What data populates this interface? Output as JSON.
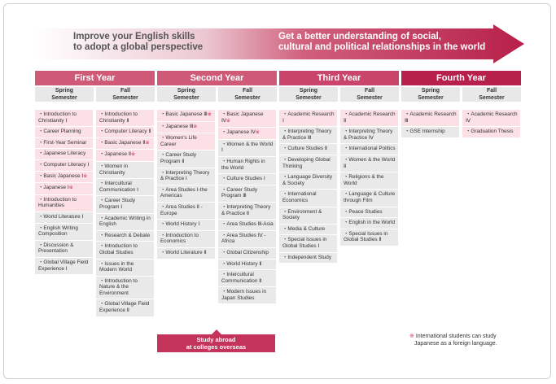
{
  "banner": {
    "left_text_1": "Improve your English skills",
    "left_text_2": "to adopt a global perspective",
    "right_text_1": "Get a better understanding of social,",
    "right_text_2": "cultural and political relationships in the world"
  },
  "colors": {
    "dark": "#b7204a",
    "mid": "#c9546f",
    "light": "#e3bcc7",
    "pink": "#fbe0e6",
    "gray": "#e9e9e9"
  },
  "mark": "※",
  "years": [
    {
      "title": "First Year",
      "semesters": [
        {
          "label_1": "Spring",
          "label_2": "Semester",
          "items": [
            {
              "text": "Introduction to Christianity Ⅰ",
              "pink": true,
              "mark": false
            },
            {
              "text": "Career Planning",
              "pink": true,
              "mark": false
            },
            {
              "text": "First-Year Seminar",
              "pink": true,
              "mark": false
            },
            {
              "text": "Japanese Literacy",
              "pink": true,
              "mark": false
            },
            {
              "text": "Computer Literacy Ⅰ",
              "pink": true,
              "mark": false
            },
            {
              "text": "Basic Japanese Ⅰ",
              "pink": true,
              "mark": true
            },
            {
              "text": "Japanese Ⅰ",
              "pink": true,
              "mark": true
            },
            {
              "text": "Introduction to Humanities",
              "pink": true,
              "mark": false
            },
            {
              "text": "World Literature Ⅰ",
              "pink": false,
              "mark": false
            },
            {
              "text": "English Writing Composition",
              "pink": false,
              "mark": false
            },
            {
              "text": "Discussion & Presentation",
              "pink": false,
              "mark": false
            },
            {
              "text": "Global Village Field Experience Ⅰ",
              "pink": false,
              "mark": false
            }
          ]
        },
        {
          "label_1": "Fall",
          "label_2": "Semester",
          "items": [
            {
              "text": "Introduction to Christianity Ⅱ",
              "pink": true,
              "mark": false
            },
            {
              "text": "Computer Literacy Ⅱ",
              "pink": true,
              "mark": false
            },
            {
              "text": "Basic Japanese Ⅱ",
              "pink": true,
              "mark": true
            },
            {
              "text": "Japanese Ⅱ",
              "pink": true,
              "mark": true
            },
            {
              "text": "Women in Christianity",
              "pink": false,
              "mark": false
            },
            {
              "text": "Intercultural Communication Ⅰ",
              "pink": false,
              "mark": false
            },
            {
              "text": "Career Study Program Ⅰ",
              "pink": false,
              "mark": false
            },
            {
              "text": "Academic Writing in English",
              "pink": false,
              "mark": false
            },
            {
              "text": "Research & Debate",
              "pink": false,
              "mark": false
            },
            {
              "text": "Introduction to Global Studies",
              "pink": false,
              "mark": false
            },
            {
              "text": "Issues in the Modern World",
              "pink": false,
              "mark": false
            },
            {
              "text": "Introduction to Nature & the Environment",
              "pink": false,
              "mark": false
            },
            {
              "text": "Global Village Field Experience Ⅱ",
              "pink": false,
              "mark": false
            }
          ]
        }
      ]
    },
    {
      "title": "Second Year",
      "semesters": [
        {
          "label_1": "Spring",
          "label_2": "Semester",
          "items": [
            {
              "text": "Basic Japanese Ⅲ",
              "pink": true,
              "mark": true
            },
            {
              "text": "Japanese Ⅲ",
              "pink": true,
              "mark": true
            },
            {
              "text": "Women's Life Career",
              "pink": true,
              "mark": false
            },
            {
              "text": "Career Study Program Ⅱ",
              "pink": false,
              "mark": false
            },
            {
              "text": "Interpreting Theory & Practice Ⅰ",
              "pink": false,
              "mark": false
            },
            {
              "text": "Area Studies Ⅰ-the Americas",
              "pink": false,
              "mark": false
            },
            {
              "text": "Area Studies Ⅱ -Europe",
              "pink": false,
              "mark": false
            },
            {
              "text": "World History Ⅰ",
              "pink": false,
              "mark": false
            },
            {
              "text": "Introduction to Economics",
              "pink": false,
              "mark": false
            },
            {
              "text": "World Literature Ⅱ",
              "pink": false,
              "mark": false
            }
          ]
        },
        {
          "label_1": "Fall",
          "label_2": "Semester",
          "items": [
            {
              "text": "Basic Japanese Ⅳ",
              "pink": true,
              "mark": true
            },
            {
              "text": "Japanese Ⅳ",
              "pink": true,
              "mark": true
            },
            {
              "text": "Women & the World Ⅰ",
              "pink": false,
              "mark": false
            },
            {
              "text": "Human Rights in the World",
              "pink": false,
              "mark": false
            },
            {
              "text": "Culture Studies Ⅰ",
              "pink": false,
              "mark": false
            },
            {
              "text": "Career Study Program Ⅲ",
              "pink": false,
              "mark": false
            },
            {
              "text": "Interpreting Theory & Practice Ⅱ",
              "pink": false,
              "mark": false
            },
            {
              "text": "Area Studies Ⅲ-Asia",
              "pink": false,
              "mark": false
            },
            {
              "text": "Area Studies Ⅳ -Africa",
              "pink": false,
              "mark": false
            },
            {
              "text": "Global Citizenship",
              "pink": false,
              "mark": false
            },
            {
              "text": "World History Ⅱ",
              "pink": false,
              "mark": false
            },
            {
              "text": "Intercultural Communication Ⅱ",
              "pink": false,
              "mark": false
            },
            {
              "text": "Modern Issues in Japan Studies",
              "pink": false,
              "mark": false
            }
          ]
        }
      ]
    },
    {
      "title": "Third Year",
      "semesters": [
        {
          "label_1": "Spring",
          "label_2": "Semester",
          "items": [
            {
              "text": "Academic Research Ⅰ",
              "pink": true,
              "mark": false
            },
            {
              "text": "Interpreting Theory & Practice Ⅲ",
              "pink": false,
              "mark": false
            },
            {
              "text": "Culture Studies Ⅱ",
              "pink": false,
              "mark": false
            },
            {
              "text": "Developing Global Thinking",
              "pink": false,
              "mark": false
            },
            {
              "text": "Language Diversity & Society",
              "pink": false,
              "mark": false
            },
            {
              "text": "International Economics",
              "pink": false,
              "mark": false
            },
            {
              "text": "Environment & Society",
              "pink": false,
              "mark": false
            },
            {
              "text": "Media & Culture",
              "pink": false,
              "mark": false
            },
            {
              "text": "Special Issues in Global Studies Ⅰ",
              "pink": false,
              "mark": false
            },
            {
              "text": "Independent Study",
              "pink": false,
              "mark": false
            }
          ]
        },
        {
          "label_1": "Fall",
          "label_2": "Semester",
          "items": [
            {
              "text": "Academic Research Ⅱ",
              "pink": true,
              "mark": false
            },
            {
              "text": "Interpreting Theory & Practice Ⅳ",
              "pink": false,
              "mark": false
            },
            {
              "text": "International Politics",
              "pink": false,
              "mark": false
            },
            {
              "text": "Women & the World Ⅱ",
              "pink": false,
              "mark": false
            },
            {
              "text": "Religions & the World",
              "pink": false,
              "mark": false
            },
            {
              "text": "Language & Culture through Film",
              "pink": false,
              "mark": false
            },
            {
              "text": "Peace Studies",
              "pink": false,
              "mark": false
            },
            {
              "text": "English in the World",
              "pink": false,
              "mark": false
            },
            {
              "text": "Special Issues in Global Studies Ⅱ",
              "pink": false,
              "mark": false
            }
          ]
        }
      ]
    },
    {
      "title": "Fourth Year",
      "semesters": [
        {
          "label_1": "Spring",
          "label_2": "Semester",
          "items": [
            {
              "text": "Academic Research Ⅲ",
              "pink": true,
              "mark": false
            },
            {
              "text": "GSE Internship",
              "pink": false,
              "mark": false
            }
          ]
        },
        {
          "label_1": "Fall",
          "label_2": "Semester",
          "items": [
            {
              "text": "Academic Research Ⅳ",
              "pink": true,
              "mark": false
            },
            {
              "text": "Graduation Thesis",
              "pink": true,
              "mark": false
            }
          ]
        }
      ]
    }
  ],
  "study_abroad": {
    "line_1": "Study abroad",
    "line_2": "at colleges overseas"
  },
  "note": {
    "line_1": "International students can study",
    "line_2": "Japanese as a foreign language."
  }
}
